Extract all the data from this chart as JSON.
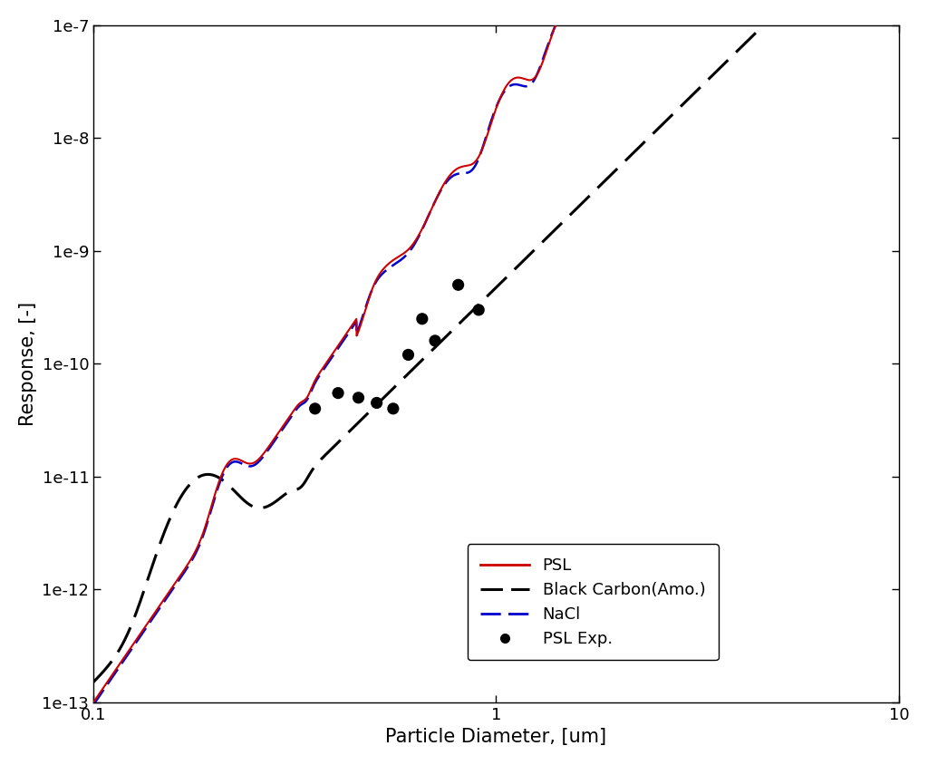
{
  "title": "",
  "xlabel": "Particle Diameter, [um]",
  "ylabel": "Response, [-]",
  "xlim": [
    0.1,
    10
  ],
  "ylim": [
    1e-13,
    1e-07
  ],
  "psl_color": "#cc0000",
  "nacl_color": "#0000cc",
  "bc_color": "#000000",
  "exp_color": "#000000",
  "background_color": "#ffffff",
  "fig_width": 10.24,
  "fig_height": 8.44,
  "dpi": 100
}
